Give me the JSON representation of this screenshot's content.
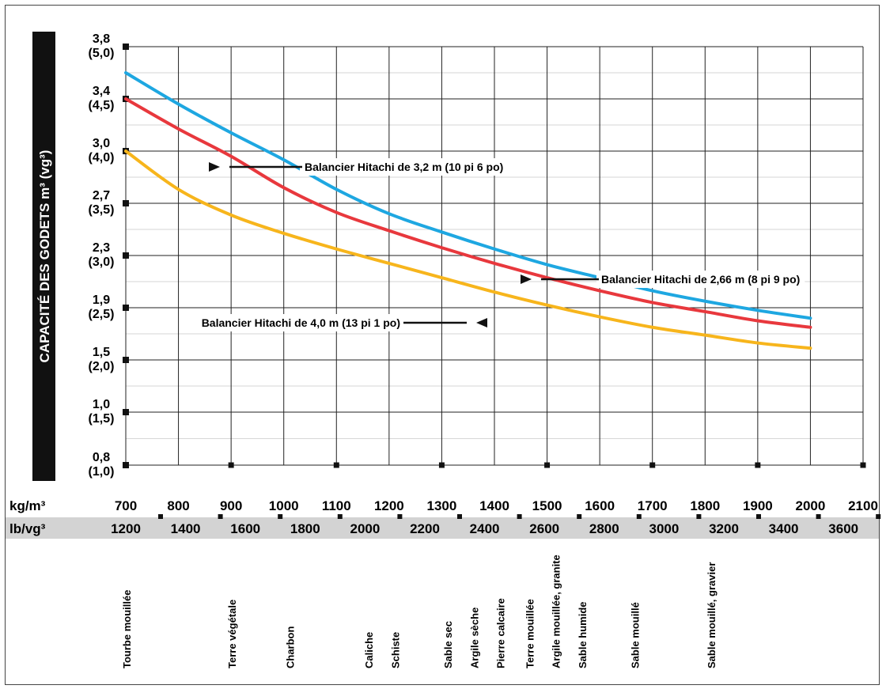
{
  "chart_data": {
    "type": "line",
    "ylabel": "CAPACITÉ DES GODETS m³ (vg³)",
    "y_ticks": [
      {
        "v": 0.8,
        "main": "0,8",
        "sub": "(1,0)"
      },
      {
        "v": 1.0,
        "main": "1,0",
        "sub": "(1,5)"
      },
      {
        "v": 1.5,
        "main": "1,5",
        "sub": "(2,0)"
      },
      {
        "v": 1.9,
        "main": "1,9",
        "sub": "(2,5)"
      },
      {
        "v": 2.3,
        "main": "2,3",
        "sub": "(3,0)"
      },
      {
        "v": 2.7,
        "main": "2,7",
        "sub": "(3,5)"
      },
      {
        "v": 3.0,
        "main": "3,0",
        "sub": "(4,0)"
      },
      {
        "v": 3.4,
        "main": "3,4",
        "sub": "(4,5)"
      },
      {
        "v": 3.8,
        "main": "3,8",
        "sub": "(5,0)"
      }
    ],
    "x_unit_kg": "kg/m³",
    "x_unit_lb": "lb/vg³",
    "x_ticks_kg": [
      700,
      800,
      900,
      1000,
      1100,
      1200,
      1300,
      1400,
      1500,
      1600,
      1700,
      1800,
      1900,
      2000,
      2100
    ],
    "x_ticks_lb": [
      1200,
      1400,
      1600,
      1800,
      2000,
      2200,
      2400,
      2600,
      2800,
      3000,
      3200,
      3400,
      3600
    ],
    "series": [
      {
        "name": "Balancier Hitachi de 2,66 m (8 pi 9 po)",
        "color": "#1ea7e1",
        "x": [
          700,
          800,
          900,
          1000,
          1100,
          1200,
          1300,
          1400,
          1500,
          1600,
          1700,
          1800,
          1900,
          2000
        ],
        "y": [
          3.6,
          3.36,
          3.14,
          2.95,
          2.78,
          2.62,
          2.48,
          2.35,
          2.23,
          2.13,
          2.03,
          1.95,
          1.88,
          1.82
        ]
      },
      {
        "name": "Balancier Hitachi de 3,2 m (10 pi 6 po)",
        "color": "#e8383d",
        "x": [
          700,
          800,
          900,
          1000,
          1100,
          1200,
          1300,
          1400,
          1500,
          1600,
          1700,
          1800,
          1900,
          2000
        ],
        "y": [
          3.4,
          3.17,
          2.97,
          2.79,
          2.63,
          2.49,
          2.36,
          2.24,
          2.13,
          2.03,
          1.94,
          1.87,
          1.8,
          1.75
        ]
      },
      {
        "name": "Balancier Hitachi de 4,0 m (13 pi 1 po)",
        "color": "#f7b51c",
        "x": [
          700,
          800,
          900,
          1000,
          1100,
          1200,
          1300,
          1400,
          1500,
          1600,
          1700,
          1800,
          1900,
          2000
        ],
        "y": [
          3.0,
          2.78,
          2.61,
          2.47,
          2.35,
          2.24,
          2.13,
          2.02,
          1.92,
          1.83,
          1.75,
          1.69,
          1.63,
          1.59
        ]
      }
    ],
    "annotations": [
      {
        "text": "Balancier Hitachi de 3,2 m (10 pi 6 po)",
        "target": {
          "x": 860,
          "y": 2.96
        }
      },
      {
        "text": "Balancier Hitachi de 2,66 m (8 pi 9 po)",
        "target": {
          "x": 1470,
          "y": 2.24
        }
      },
      {
        "text": "Balancier Hitachi de 4,0 m (13 pi 1 po)",
        "target": {
          "x": 1390,
          "y": 2.0
        }
      }
    ],
    "materials": [
      {
        "name": "Tourbe mouillée",
        "kg": 700
      },
      {
        "name": "Terre végétale",
        "kg": 900
      },
      {
        "name": "Charbon",
        "kg": 1010
      },
      {
        "name": "Caliche",
        "kg": 1160
      },
      {
        "name": "Schiste",
        "kg": 1210
      },
      {
        "name": "Sable sec",
        "kg": 1310
      },
      {
        "name": "Argile sèche",
        "kg": 1360
      },
      {
        "name": "Pierre calcaire",
        "kg": 1410
      },
      {
        "name": "Terre mouillée",
        "kg": 1465
      },
      {
        "name": "Argile mouillée, granite",
        "kg": 1515
      },
      {
        "name": "Sable humide",
        "kg": 1565
      },
      {
        "name": "Sable mouillé",
        "kg": 1665
      },
      {
        "name": "Sable mouillé, gravier",
        "kg": 1810
      }
    ],
    "grid": true,
    "ylim": [
      0.8,
      3.8
    ],
    "xlim": [
      700,
      2100
    ]
  }
}
